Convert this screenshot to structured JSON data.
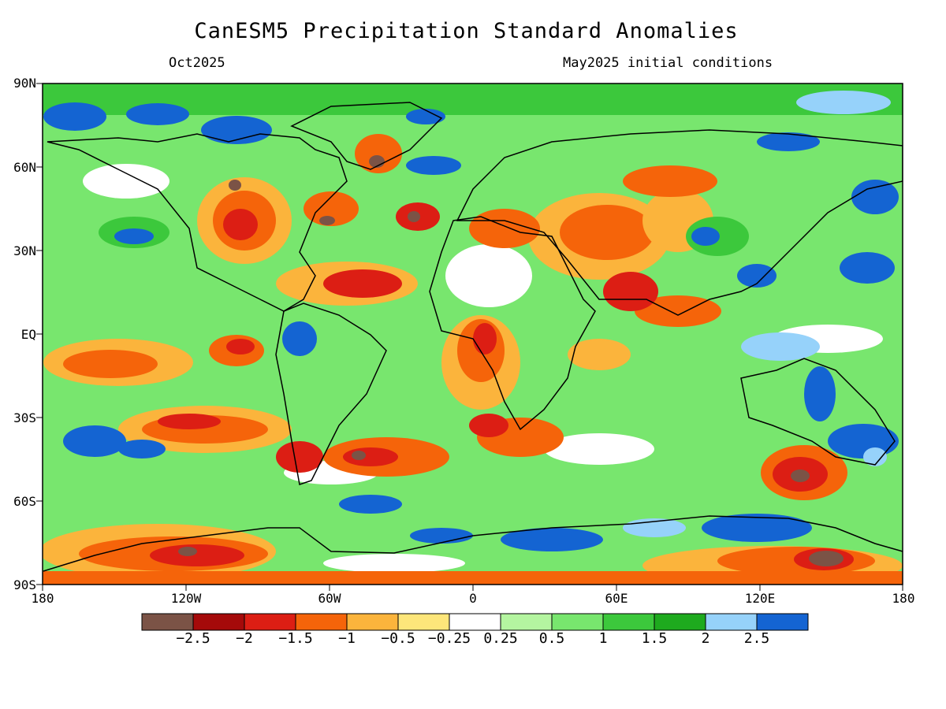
{
  "header": {
    "title": "CanESM5 Precipitation Standard Anomalies",
    "valid_time": "Oct2025",
    "initial_conditions": "May2025 initial conditions"
  },
  "axes": {
    "lat_labels": [
      "90N",
      "60N",
      "30N",
      "EQ",
      "30S",
      "60S",
      "90S"
    ],
    "lon_labels": [
      "180",
      "120W",
      "60W",
      "0",
      "60E",
      "120E",
      "180"
    ]
  },
  "colorbar": {
    "colors": [
      "#7b5346",
      "#a50a0a",
      "#dc1e14",
      "#f5640a",
      "#fbb43c",
      "#fde67a",
      "#ffffff",
      "#b4f5a0",
      "#78e66e",
      "#3cc83c",
      "#1eaa1e",
      "#96d2fa",
      "#1464d2"
    ],
    "labels": [
      "−2.5",
      "−2",
      "−1.5",
      "−1",
      "−0.5",
      "−0.25",
      "0.25",
      "0.5",
      "1",
      "1.5",
      "2",
      "2.5"
    ]
  }
}
